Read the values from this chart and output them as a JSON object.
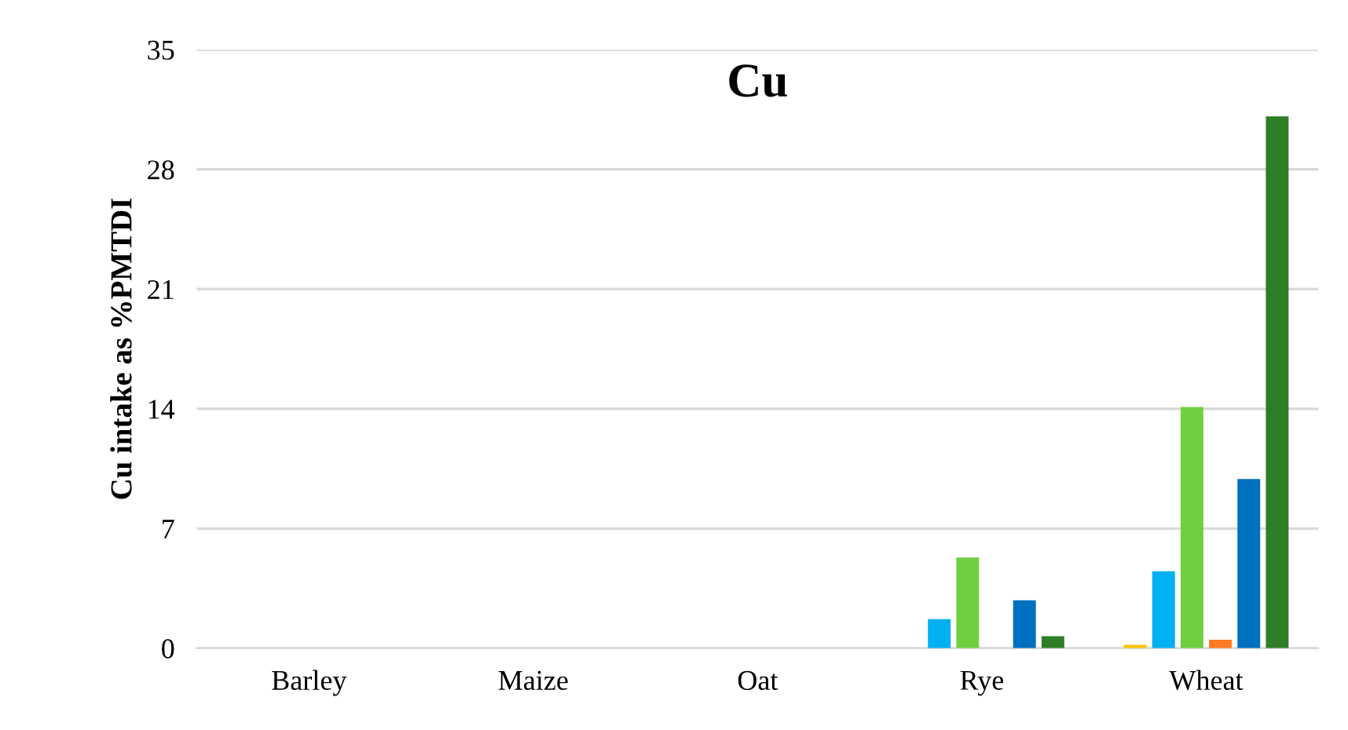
{
  "chart_data": {
    "type": "bar",
    "title": "Cu",
    "ylabel": "Cu intake as %PMTDI",
    "categories": [
      "Barley",
      "Maize",
      "Oat",
      "Rye",
      "Wheat"
    ],
    "series": [
      {
        "color": "#ffc000",
        "values": [
          0,
          0,
          0,
          0,
          0.2
        ]
      },
      {
        "color": "#00b0f0",
        "values": [
          0,
          0,
          0,
          1.7,
          4.5
        ]
      },
      {
        "color": "#6fcf3f",
        "values": [
          0,
          0,
          0,
          5.3,
          14.1
        ]
      },
      {
        "color": "#ff7a22",
        "values": [
          0,
          0,
          0,
          0,
          0.5
        ]
      },
      {
        "color": "#0070c0",
        "values": [
          0,
          0,
          0,
          2.8,
          9.9
        ]
      },
      {
        "color": "#2e7d27",
        "values": [
          0,
          0,
          0,
          0.7,
          31.1
        ]
      }
    ],
    "ylim": [
      0,
      35
    ],
    "yticks": [
      0,
      7,
      14,
      21,
      28,
      35
    ],
    "grid": "y",
    "legend": false
  }
}
